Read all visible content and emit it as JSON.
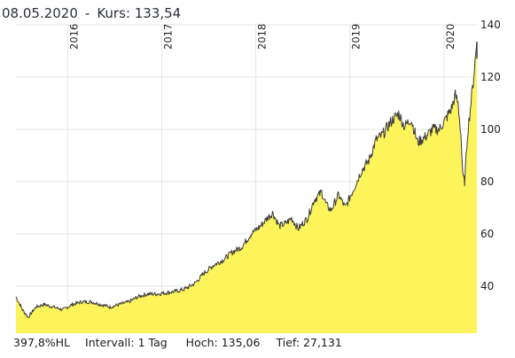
{
  "header": {
    "date": "08.05.2020",
    "separator": "-",
    "price_label": "Kurs:",
    "price_value": "133,54"
  },
  "footer": {
    "change": "397,8%HL",
    "interval_label": "Intervall:",
    "interval_value": "1 Tag",
    "high_label": "Hoch:",
    "high_value": "135,06",
    "low_label": "Tief:",
    "low_value": "27,131"
  },
  "colors": {
    "area_fill": "#fdf35a",
    "line": "#3b3b3b",
    "grid": "#e4e4e4",
    "text": "#222222"
  },
  "chart_data": {
    "type": "area",
    "title": "",
    "xlabel": "",
    "ylabel": "",
    "x_tick_labels": [
      "2016",
      "2017",
      "2018",
      "2019",
      "2020"
    ],
    "y_tick_labels": [
      "40",
      "60",
      "80",
      "100",
      "120",
      "140"
    ],
    "ylim": [
      22,
      140
    ],
    "grid": true,
    "x_range_years": [
      2015.45,
      2020.35
    ],
    "series": [
      {
        "x": [
          2015.45,
          2015.52,
          2015.58,
          2015.66,
          2015.75,
          2015.85,
          2015.95,
          2016.05,
          2016.15,
          2016.25,
          2016.35,
          2016.45,
          2016.55,
          2016.65,
          2016.75,
          2016.85,
          2016.95,
          2017.05,
          2017.15,
          2017.25,
          2017.35,
          2017.45,
          2017.55,
          2017.65,
          2017.75,
          2017.85,
          2017.95,
          2018.05,
          2018.12,
          2018.18,
          2018.25,
          2018.32,
          2018.38,
          2018.45,
          2018.55,
          2018.62,
          2018.7,
          2018.75,
          2018.8,
          2018.88,
          2018.95,
          2019.05,
          2019.12,
          2019.2,
          2019.28,
          2019.35,
          2019.4,
          2019.46,
          2019.52,
          2019.58,
          2019.65,
          2019.72,
          2019.8,
          2019.88,
          2019.95,
          2020.02,
          2020.08,
          2020.12,
          2020.15,
          2020.18,
          2020.2,
          2020.22,
          2020.25,
          2020.28,
          2020.31,
          2020.33,
          2020.35
        ],
        "y": [
          36,
          31,
          28,
          32,
          33,
          32,
          31,
          33,
          34,
          34,
          33,
          32,
          33,
          34,
          36,
          37,
          37,
          37.5,
          38,
          39,
          41,
          45,
          48,
          50,
          53,
          55,
          60,
          63,
          66,
          68,
          63,
          64,
          66,
          62,
          66,
          73,
          76,
          71,
          69,
          75,
          70,
          78,
          84,
          88,
          96,
          98,
          101,
          104,
          106,
          101,
          104,
          95,
          97,
          100,
          100,
          104,
          108,
          113,
          110,
          98,
          82,
          80,
          98,
          108,
          118,
          126,
          133.54
        ]
      }
    ]
  }
}
